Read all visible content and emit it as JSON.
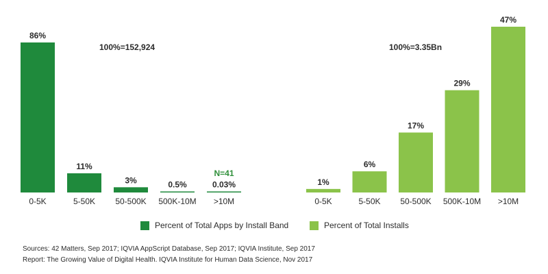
{
  "colors": {
    "apps": "#1f8a3c",
    "installs": "#8bc34a",
    "note": "#2f8f3a",
    "axis": "#bdbdbd"
  },
  "chart_data": [
    {
      "type": "bar",
      "categories": [
        "0-5K",
        "5-50K",
        "50-500K",
        "500K-10M",
        ">10M"
      ],
      "values": [
        86,
        11,
        3,
        0.5,
        0.03
      ],
      "value_labels": [
        "86%",
        "11%",
        "3%",
        "0.5%",
        "0.03%"
      ],
      "total_label": "100%=152,924",
      "annotation": "N=41",
      "series": [
        {
          "name": "Percent of Total Apps by Install Band",
          "values": [
            86,
            11,
            3,
            0.5,
            0.03
          ]
        }
      ],
      "ylim": [
        0,
        86
      ]
    },
    {
      "type": "bar",
      "categories": [
        "0-5K",
        "5-50K",
        "50-500K",
        "500K-10M",
        ">10M"
      ],
      "values": [
        1,
        6,
        17,
        29,
        47
      ],
      "value_labels": [
        "1%",
        "6%",
        "17%",
        "29%",
        "47%"
      ],
      "total_label": "100%=3.35Bn",
      "series": [
        {
          "name": "Percent of Total Installs",
          "values": [
            1,
            6,
            17,
            29,
            47
          ]
        }
      ],
      "ylim": [
        0,
        47
      ]
    }
  ],
  "legend": {
    "apps_label": "Percent of Total Apps by Install Band",
    "installs_label": "Percent of Total Installs"
  },
  "footer": {
    "sources": "Sources: 42 Matters, Sep 2017; IQVIA AppScript Database, Sep 2017; IQVIA Institute, Sep 2017",
    "report": "Report: The Growing Value of Digital Health. IQVIA Institute for Human Data Science, Nov 2017"
  }
}
